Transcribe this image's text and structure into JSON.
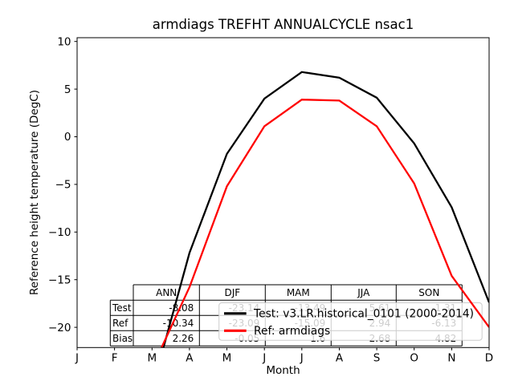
{
  "title": "armdiags TREFHT ANNUALCYCLE nsac1",
  "axes": {
    "ylabel": "Reference height temperature (DegC)",
    "xlabel": "Month",
    "y_ticks": [
      "10",
      "5",
      "0",
      "−5",
      "−10",
      "−15",
      "−20"
    ],
    "x_ticks": [
      "J",
      "F",
      "M",
      "A",
      "M",
      "J",
      "J",
      "A",
      "S",
      "O",
      "N",
      "D"
    ]
  },
  "legend": {
    "test_label": "Test: v3.LR.historical_0101 (2000-2014)",
    "ref_label": "Ref: armdiags",
    "test_color": "#000000",
    "ref_color": "#ff0000"
  },
  "table": {
    "col_headers": [
      "ANN",
      "DJF",
      "MAM",
      "JJA",
      "SON"
    ],
    "rows": [
      {
        "label": "Test",
        "values": [
          "-8.08",
          "-23.14",
          "-13.49",
          "5.61",
          "-1.31"
        ]
      },
      {
        "label": "Ref",
        "values": [
          "-10.34",
          "-23.09",
          "-15.09",
          "2.94",
          "-6.13"
        ]
      },
      {
        "label": "Bias",
        "values": [
          "2.26",
          "-0.05",
          "1.6",
          "2.68",
          "4.82"
        ]
      }
    ]
  },
  "chart_data": {
    "type": "line",
    "title": "armdiags TREFHT ANNUALCYCLE nsac1",
    "xlabel": "Month",
    "ylabel": "Reference height temperature (DegC)",
    "categories": [
      "Jan",
      "Feb",
      "Mar",
      "Apr",
      "May",
      "Jun",
      "Jul",
      "Aug",
      "Sep",
      "Oct",
      "Nov",
      "Dec"
    ],
    "x_tick_labels": [
      "J",
      "F",
      "M",
      "A",
      "M",
      "J",
      "J",
      "A",
      "S",
      "O",
      "N",
      "D"
    ],
    "y_ticks": [
      10,
      5,
      0,
      -5,
      -10,
      -15,
      -20
    ],
    "ylim": [
      -22.13,
      10.4
    ],
    "grid": false,
    "legend_position": "lower center overlay",
    "series": [
      {
        "name": "Test: v3.LR.historical_0101 (2000-2014)",
        "color": "#000000",
        "values": [
          -26.0,
          -26.0,
          -26.5,
          -12.2,
          -1.8,
          4.0,
          6.8,
          6.2,
          4.1,
          -0.7,
          -7.4,
          -17.4
        ]
      },
      {
        "name": "Ref: armdiags",
        "color": "#ff0000",
        "values": [
          -24.6,
          -24.7,
          -24.3,
          -15.8,
          -5.2,
          1.1,
          3.9,
          3.8,
          1.1,
          -4.9,
          -14.6,
          -20.0
        ]
      }
    ],
    "seasonal_stats": {
      "columns": [
        "ANN",
        "DJF",
        "MAM",
        "JJA",
        "SON"
      ],
      "Test": [
        -8.08,
        -23.14,
        -13.49,
        5.61,
        -1.31
      ],
      "Ref": [
        -10.34,
        -23.09,
        -15.09,
        2.94,
        -6.13
      ],
      "Bias": [
        2.26,
        -0.05,
        1.6,
        2.68,
        4.82
      ]
    }
  }
}
